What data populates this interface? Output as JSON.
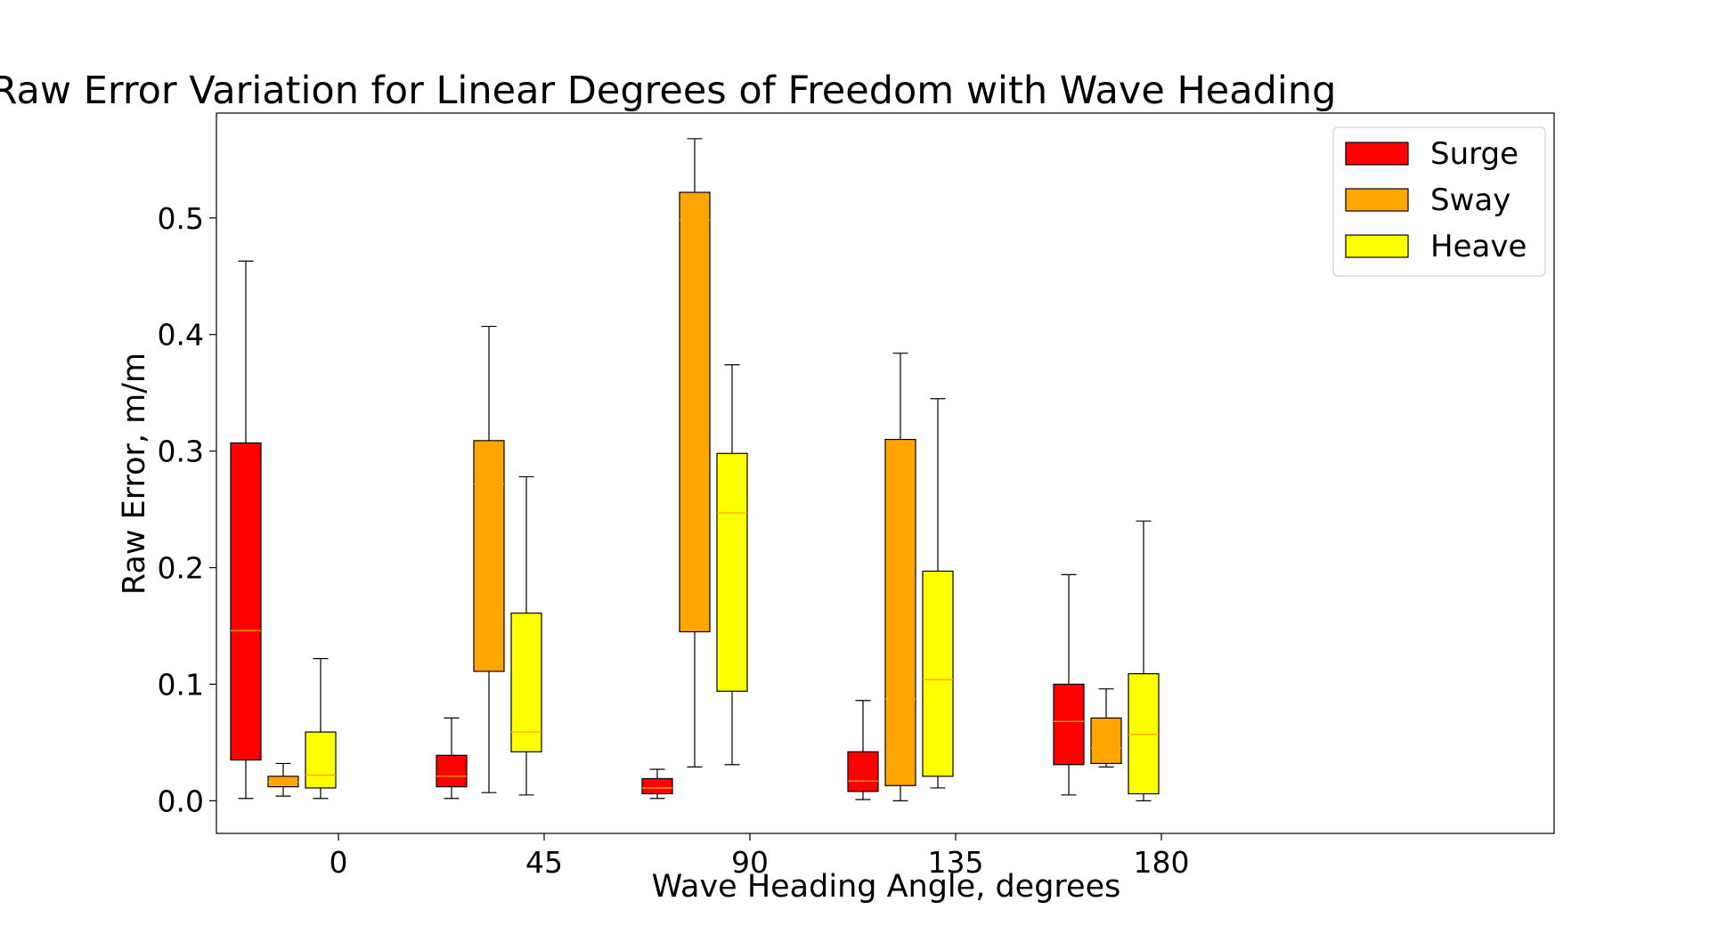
{
  "chart_data": {
    "type": "boxplot",
    "title": "Raw Error Variation for Linear Degrees of Freedom with Wave Heading",
    "xlabel": "Wave Heading Angle, degrees",
    "ylabel": "Raw Error, m/m",
    "categories": [
      "0",
      "45",
      "90",
      "135",
      "180"
    ],
    "ylim": [
      -0.028,
      0.59
    ],
    "yticks": [
      0.0,
      0.1,
      0.2,
      0.3,
      0.4,
      0.5
    ],
    "ytick_labels": [
      "0.0",
      "0.1",
      "0.2",
      "0.3",
      "0.4",
      "0.5"
    ],
    "grid": false,
    "legend_position": "top-right",
    "median_color": "#ffa500",
    "series": [
      {
        "name": "Surge",
        "color": "#ff0000",
        "boxes": [
          {
            "whisker_low": 0.002,
            "q1": 0.035,
            "median": 0.146,
            "q3": 0.307,
            "whisker_high": 0.463
          },
          {
            "whisker_low": 0.002,
            "q1": 0.012,
            "median": 0.021,
            "q3": 0.039,
            "whisker_high": 0.071
          },
          {
            "whisker_low": 0.002,
            "q1": 0.006,
            "median": 0.011,
            "q3": 0.019,
            "whisker_high": 0.027
          },
          {
            "whisker_low": 0.001,
            "q1": 0.008,
            "median": 0.017,
            "q3": 0.042,
            "whisker_high": 0.086
          },
          {
            "whisker_low": 0.005,
            "q1": 0.031,
            "median": 0.068,
            "q3": 0.1,
            "whisker_high": 0.194
          }
        ]
      },
      {
        "name": "Sway",
        "color": "#ffa500",
        "boxes": [
          {
            "whisker_low": 0.004,
            "q1": 0.012,
            "median": 0.016,
            "q3": 0.021,
            "whisker_high": 0.032
          },
          {
            "whisker_low": 0.007,
            "q1": 0.111,
            "median": 0.272,
            "q3": 0.309,
            "whisker_high": 0.407
          },
          {
            "whisker_low": 0.029,
            "q1": 0.145,
            "median": 0.498,
            "q3": 0.522,
            "whisker_high": 0.568
          },
          {
            "whisker_low": 0.0,
            "q1": 0.013,
            "median": 0.087,
            "q3": 0.31,
            "whisker_high": 0.384
          },
          {
            "whisker_low": 0.029,
            "q1": 0.032,
            "median": 0.045,
            "q3": 0.071,
            "whisker_high": 0.096
          }
        ]
      },
      {
        "name": "Heave",
        "color": "#ffff00",
        "boxes": [
          {
            "whisker_low": 0.002,
            "q1": 0.011,
            "median": 0.022,
            "q3": 0.059,
            "whisker_high": 0.122
          },
          {
            "whisker_low": 0.005,
            "q1": 0.042,
            "median": 0.059,
            "q3": 0.161,
            "whisker_high": 0.278
          },
          {
            "whisker_low": 0.031,
            "q1": 0.094,
            "median": 0.247,
            "q3": 0.298,
            "whisker_high": 0.374
          },
          {
            "whisker_low": 0.011,
            "q1": 0.021,
            "median": 0.104,
            "q3": 0.197,
            "whisker_high": 0.345
          },
          {
            "whisker_low": 0.0,
            "q1": 0.006,
            "median": 0.057,
            "q3": 0.109,
            "whisker_high": 0.24
          }
        ]
      }
    ]
  }
}
